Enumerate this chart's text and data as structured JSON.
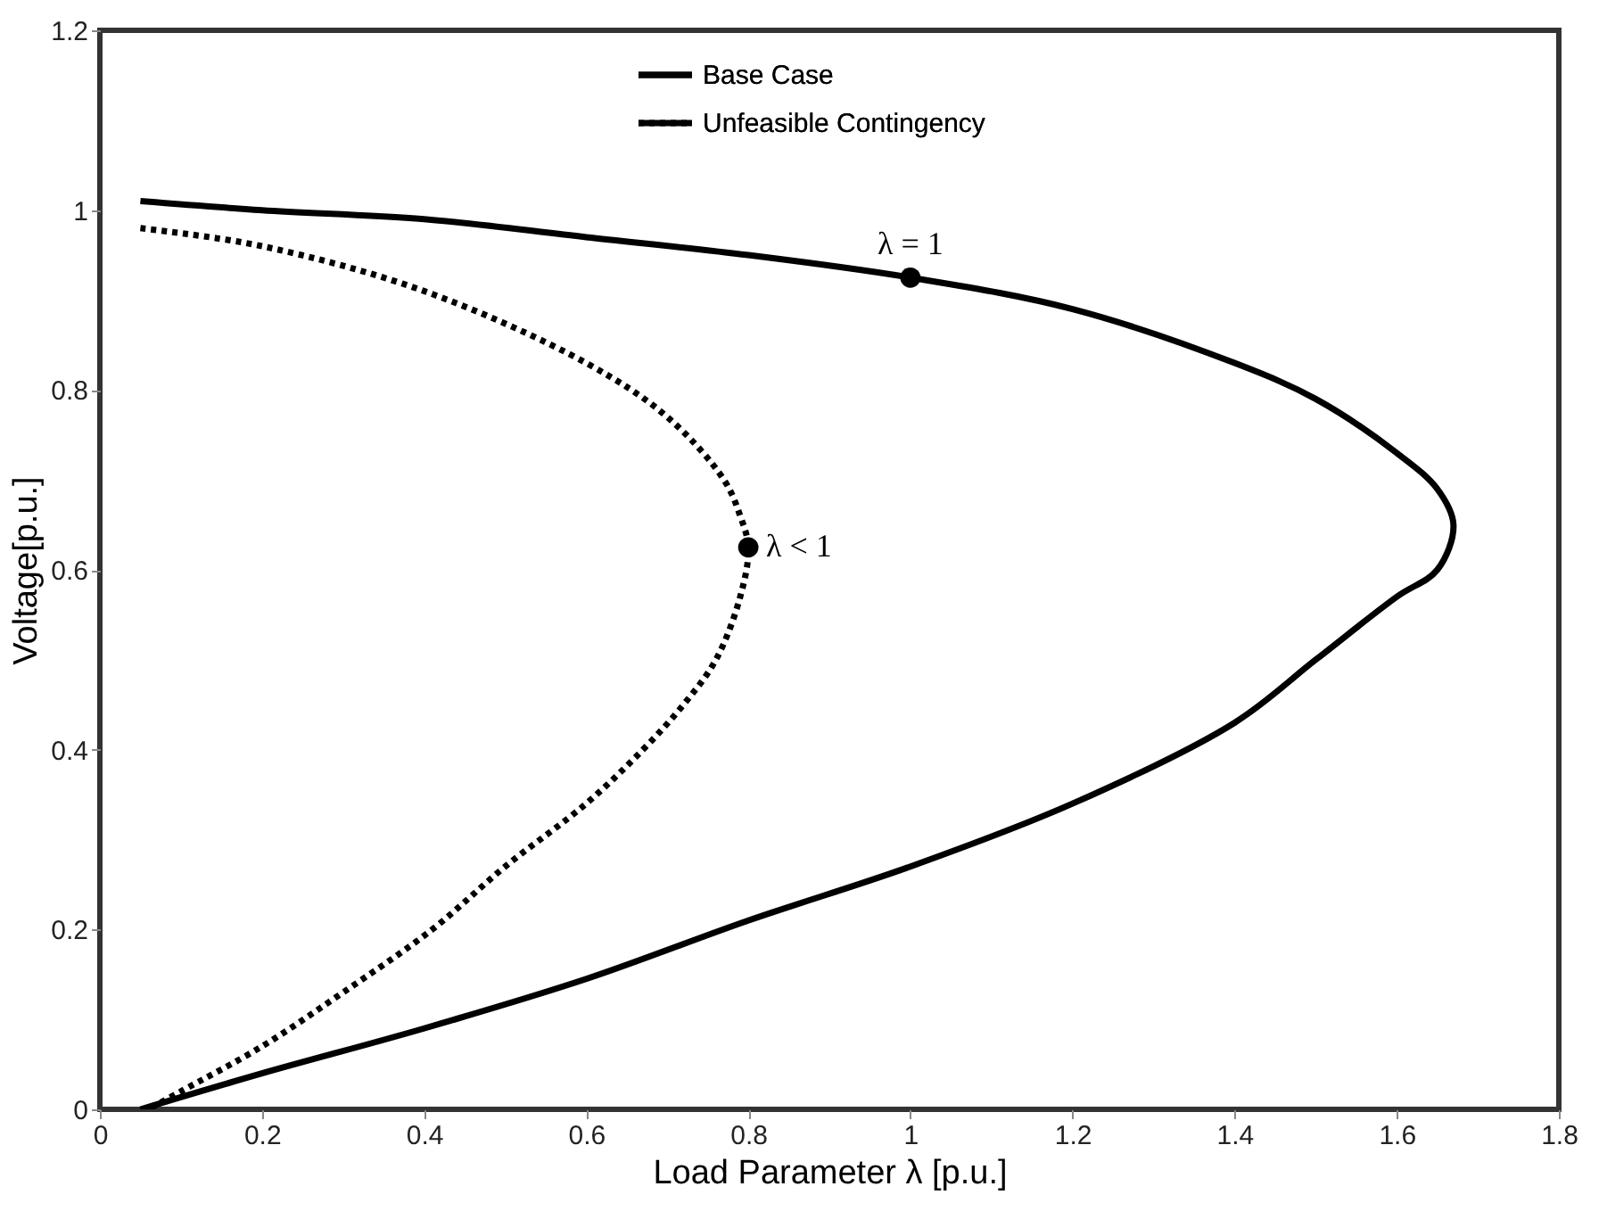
{
  "chart_data": {
    "type": "line",
    "xlabel": "Load Parameter λ [p.u.]",
    "ylabel": "Voltage[p.u.]",
    "xlim": [
      0,
      1.8
    ],
    "xticks": [
      0,
      0.2,
      0.4,
      0.6,
      0.8,
      1,
      1.2,
      1.4,
      1.6,
      1.8
    ],
    "ylim": [
      0,
      1.2
    ],
    "yticks": [
      0,
      0.2,
      0.4,
      0.6,
      0.8,
      1,
      1.2
    ],
    "grid": false,
    "legend": "top",
    "series": [
      {
        "name": "Base Case",
        "color": "#000000",
        "line_style": "solid",
        "x": [
          0.05,
          0.2,
          0.4,
          0.6,
          0.8,
          1.0,
          1.2,
          1.4,
          1.5,
          1.6,
          1.65,
          1.67,
          1.65,
          1.6,
          1.5,
          1.4,
          1.2,
          1.0,
          0.8,
          0.6,
          0.4,
          0.2,
          0.05
        ],
        "values": [
          1.01,
          1.0,
          0.99,
          0.97,
          0.95,
          0.925,
          0.89,
          0.83,
          0.79,
          0.73,
          0.69,
          0.65,
          0.6,
          0.57,
          0.5,
          0.43,
          0.34,
          0.27,
          0.21,
          0.145,
          0.09,
          0.04,
          0.0
        ]
      },
      {
        "name": "Unfeasible Contingency",
        "color": "#000000",
        "line_style": "dotted",
        "x": [
          0.05,
          0.2,
          0.4,
          0.6,
          0.7,
          0.77,
          0.79,
          0.8,
          0.79,
          0.76,
          0.72,
          0.67,
          0.6,
          0.5,
          0.41,
          0.3,
          0.2,
          0.1,
          0.06
        ],
        "values": [
          0.98,
          0.96,
          0.91,
          0.83,
          0.77,
          0.7,
          0.66,
          0.625,
          0.57,
          0.5,
          0.45,
          0.4,
          0.34,
          0.27,
          0.2,
          0.13,
          0.07,
          0.02,
          0.0
        ]
      },
      {
        "type": "scatter",
        "color": "#000000",
        "marker": "circle",
        "x": [
          1.0,
          0.8
        ],
        "values": [
          0.925,
          0.625
        ]
      }
    ],
    "annotations": [
      {
        "text": "λ = 1",
        "x": 1.0,
        "y": 0.925
      },
      {
        "text": "λ < 1",
        "x": 0.8,
        "y": 0.625
      }
    ]
  }
}
